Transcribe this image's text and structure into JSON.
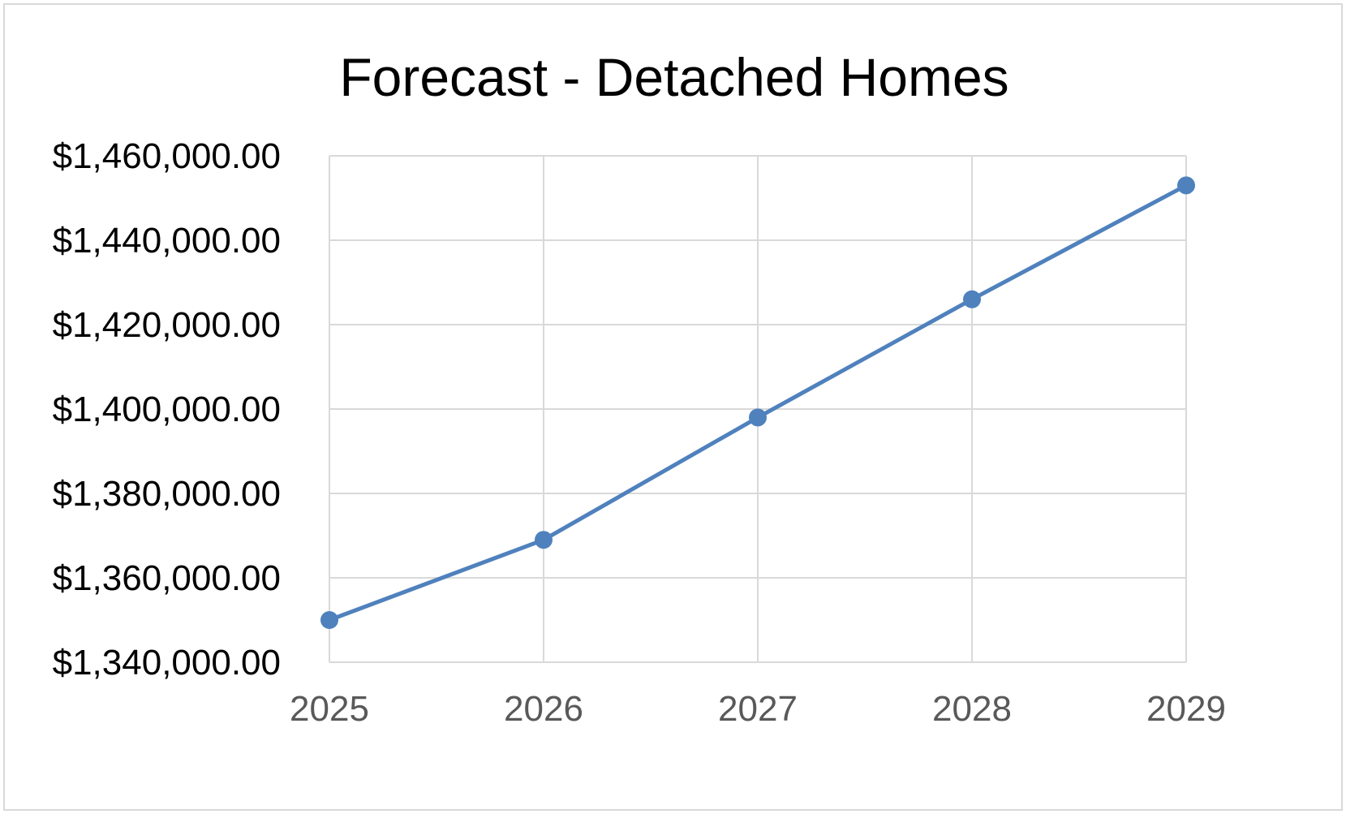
{
  "chart_data": {
    "type": "line",
    "title": "Forecast - Detached Homes",
    "xlabel": "",
    "ylabel": "",
    "categories": [
      "2025",
      "2026",
      "2027",
      "2028",
      "2029"
    ],
    "series": [
      {
        "values": [
          1350000,
          1369000,
          1398000,
          1426000,
          1453000
        ],
        "color": "#4f81bd",
        "markers": true
      }
    ],
    "ylim": [
      1340000,
      1460000
    ],
    "y_ticks": [
      1460000,
      1440000,
      1420000,
      1400000,
      1380000,
      1360000,
      1340000
    ],
    "y_tick_labels": [
      "$1,460,000.00",
      "$1,440,000.00",
      "$1,420,000.00",
      "$1,400,000.00",
      "$1,380,000.00",
      "$1,360,000.00",
      "$1,340,000.00"
    ],
    "grid": true,
    "legend": "none",
    "colors": {
      "gridline": "#d9d9d9",
      "border": "#d9d9d9",
      "y_tick_text": "#000000",
      "x_tick_text": "#595959"
    }
  }
}
